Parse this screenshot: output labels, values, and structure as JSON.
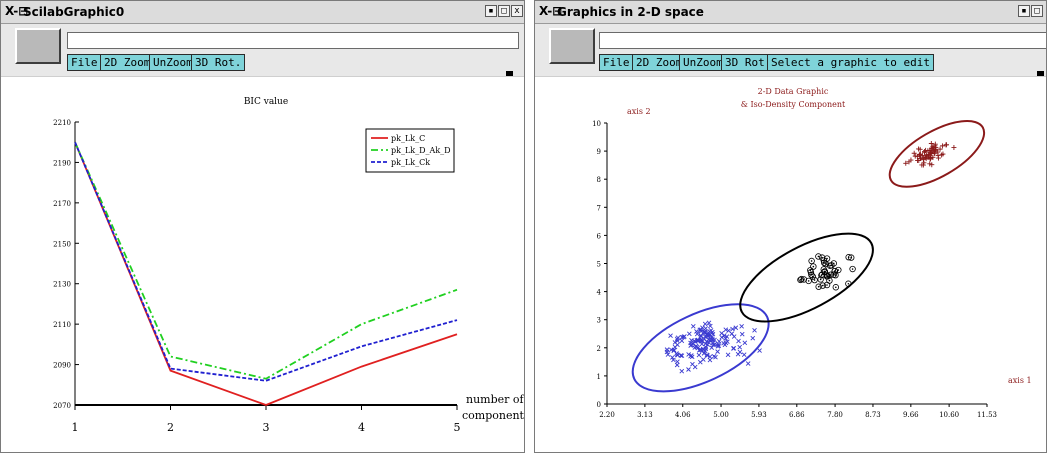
{
  "left_window": {
    "title": "ScilabGraphic0",
    "title_icon": "X-⊟",
    "window_buttons": [
      "▪",
      "□",
      "x"
    ],
    "menu": [
      "File",
      "2D Zoom",
      "UnZoom",
      "3D Rot."
    ],
    "chart_data": {
      "type": "line",
      "title": "BIC value",
      "xlabel_line1": "number of",
      "xlabel_line2": "components",
      "x": [
        1,
        2,
        3,
        4,
        5
      ],
      "xticks": [
        "1",
        "2",
        "3",
        "4",
        "5"
      ],
      "yticks": [
        "2070",
        "2090",
        "2110",
        "2130",
        "2150",
        "2170",
        "2190",
        "2210"
      ],
      "ylim": [
        2070,
        2210
      ],
      "xlim": [
        1,
        5
      ],
      "legend_position": "top-right",
      "series": [
        {
          "name": "pk_Lk_C",
          "color": "#e02020",
          "style": "solid",
          "values": [
            2200,
            2087,
            2070,
            2089,
            2105
          ]
        },
        {
          "name": "pk_Lk_D_Ak_D",
          "color": "#20d020",
          "style": "dashdot",
          "values": [
            2200,
            2094,
            2083,
            2110,
            2127
          ]
        },
        {
          "name": "pk_Lk_Ck",
          "color": "#2020d0",
          "style": "dashed",
          "values": [
            2200,
            2088,
            2082,
            2099,
            2112
          ]
        }
      ]
    }
  },
  "right_window": {
    "title": "Graphics in 2-D space",
    "title_icon": "X-⊟",
    "window_buttons": [
      "▪",
      "□"
    ],
    "menu": [
      "File",
      "2D Zoom",
      "UnZoom",
      "3D Rot.",
      "Select a graphic to edit"
    ],
    "chart_data": {
      "type": "scatter",
      "title_line1": "2-D Data Graphic",
      "title_line2": "& Iso-Density Component",
      "ylabel": "axis 2",
      "xlabel": "axis 1",
      "xticks": [
        "2.20",
        "3.13",
        "4.06",
        "5.00",
        "5.93",
        "6.86",
        "7.80",
        "8.73",
        "9.66",
        "10.60",
        "11.53"
      ],
      "yticks": [
        "0",
        "1",
        "2",
        "3",
        "4",
        "5",
        "6",
        "7",
        "8",
        "9",
        "10"
      ],
      "xlim": [
        2.2,
        11.53
      ],
      "ylim": [
        0,
        10
      ],
      "series": [
        {
          "name": "",
          "marker": "x",
          "color": "#3a3ad0",
          "center": [
            4.6,
            2.1
          ],
          "spread": [
            0.85,
            0.9
          ],
          "count": 150,
          "ellipse": {
            "cx": 4.5,
            "cy": 2.0,
            "rx": 1.8,
            "ry": 1.2,
            "angle_deg": 25
          }
        },
        {
          "name": "",
          "marker": "circle-dot",
          "color": "#000000",
          "center": [
            7.6,
            4.7
          ],
          "spread": [
            0.55,
            0.75
          ],
          "count": 45,
          "ellipse": {
            "cx": 7.1,
            "cy": 4.5,
            "rx": 1.8,
            "ry": 1.1,
            "angle_deg": 28
          }
        },
        {
          "name": "",
          "marker": "+",
          "color": "#8b1a1a",
          "center": [
            10.1,
            8.9
          ],
          "spread": [
            0.45,
            0.45
          ],
          "count": 70,
          "ellipse": {
            "cx": 10.3,
            "cy": 8.9,
            "rx": 1.3,
            "ry": 0.8,
            "angle_deg": 30
          }
        }
      ]
    }
  }
}
